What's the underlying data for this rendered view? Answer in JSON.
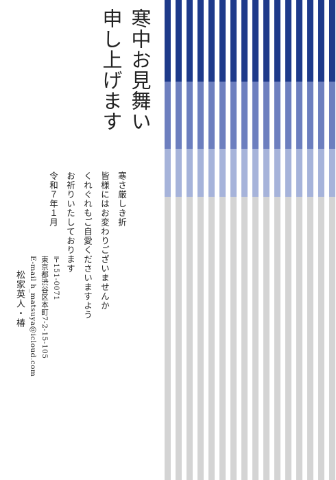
{
  "card": {
    "title_lines": [
      "寒中お見舞い",
      "申し上げます"
    ],
    "message_lines": [
      "寒さ厳しき折",
      "皆様にはお変わりございませんか",
      "くれぐれもご自愛くださいますよう",
      "お祈りいたしております"
    ],
    "date": "令和７年１月",
    "address": {
      "postal": "〒151-0071",
      "street": "東京都渋谷区本町7-2-15-105",
      "email": "E-mail h_matsuya@icloud.com"
    },
    "names": "松家英人・椿"
  },
  "stripes": {
    "band_colors": [
      "#1e3a8a",
      "#6d7fbf",
      "#a6b3da",
      "#d4d4d4"
    ],
    "band_boundaries_fraction": [
      0.17,
      0.31,
      0.41,
      1.0
    ]
  }
}
